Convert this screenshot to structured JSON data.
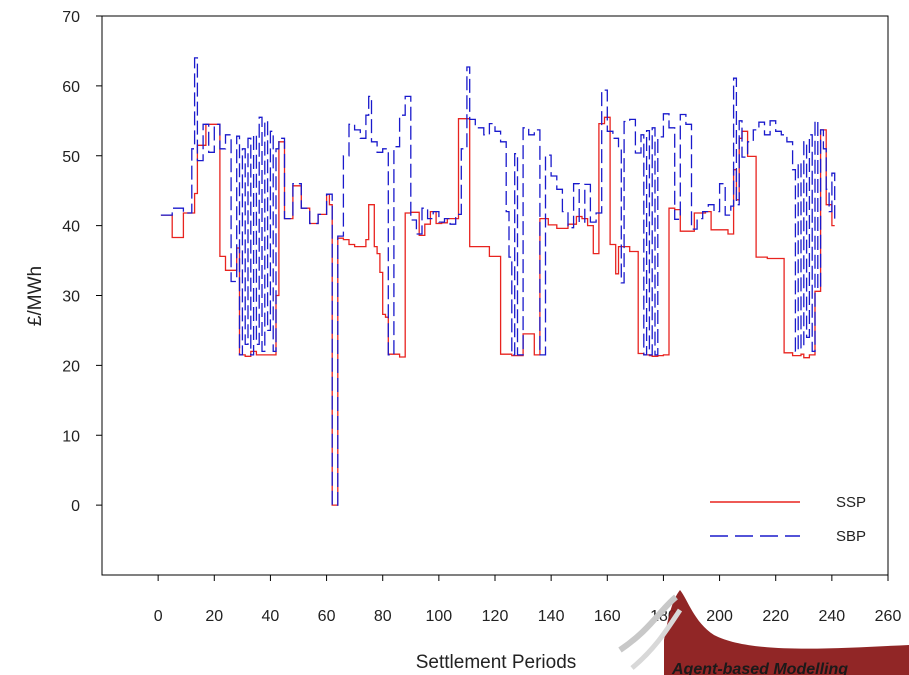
{
  "chart_data": {
    "type": "line",
    "xlabel": "Settlement Periods",
    "ylabel": "£/MWh",
    "xlim": [
      -20,
      260
    ],
    "ylim": [
      -10,
      70
    ],
    "xticks": [
      0,
      20,
      40,
      60,
      80,
      100,
      120,
      140,
      160,
      180,
      200,
      220,
      240,
      260
    ],
    "yticks": [
      0,
      10,
      20,
      30,
      40,
      50,
      60,
      70
    ],
    "grid": false,
    "legend_position": "bottom-right",
    "series": [
      {
        "name": "SSP",
        "color": "#e8231f",
        "style": "solid",
        "x": [
          1,
          5,
          9,
          13,
          14,
          17,
          22,
          24,
          28,
          29,
          31,
          33,
          35,
          38,
          42,
          43,
          45,
          48,
          51,
          54,
          57,
          60,
          61,
          62,
          63,
          64,
          66,
          68,
          70,
          72,
          74,
          75,
          77,
          78,
          79,
          80,
          81,
          82,
          86,
          88,
          90,
          93,
          95,
          97,
          99,
          101,
          103,
          107,
          111,
          113,
          118,
          122,
          126,
          127,
          130,
          134,
          136,
          139,
          142,
          146,
          149,
          151,
          153,
          155,
          157,
          159,
          160,
          161,
          163,
          164,
          168,
          171,
          173,
          175,
          176,
          178,
          180,
          182,
          184,
          186,
          191,
          195,
          197,
          203,
          205,
          206,
          207,
          208,
          210,
          213,
          217,
          223,
          226,
          229,
          230,
          232,
          234,
          236,
          238,
          240,
          241
        ],
        "y": [
          41.5,
          38.3,
          41.8,
          44.6,
          51.5,
          54.5,
          35.6,
          33.6,
          36.8,
          21.5,
          21.3,
          22.0,
          21.5,
          21.5,
          30.0,
          52.0,
          41.0,
          45.7,
          42.5,
          40.3,
          41.6,
          44.5,
          43.0,
          0,
          0,
          38.2,
          38.0,
          37.3,
          37.0,
          37.0,
          38.0,
          43.0,
          37.0,
          36.0,
          33.3,
          27.3,
          26.9,
          21.6,
          21.2,
          41.8,
          41.9,
          38.6,
          40.2,
          42.0,
          40.3,
          40.4,
          41.0,
          55.3,
          37.0,
          37.0,
          35.6,
          21.6,
          21.4,
          21.4,
          24.5,
          21.5,
          41.0,
          40.1,
          39.6,
          40.2,
          41.3,
          41.0,
          40.0,
          36.0,
          54.6,
          55.5,
          55.5,
          37.3,
          33.1,
          37.0,
          36.3,
          21.7,
          21.5,
          21.4,
          21.3,
          21.4,
          21.5,
          42.5,
          42.3,
          39.2,
          41.8,
          42.0,
          39.4,
          38.8,
          48.0,
          43.7,
          52.5,
          53.5,
          49.9,
          35.5,
          35.3,
          21.8,
          21.4,
          21.6,
          21.1,
          21.5,
          30.6,
          53.7,
          43.0,
          40.0,
          40.0
        ]
      },
      {
        "name": "SBP",
        "color": "#1a1acc",
        "style": "dashed",
        "x": [
          1,
          5,
          9,
          12,
          13,
          14,
          16,
          18,
          20,
          22,
          24,
          26,
          28,
          29,
          30,
          31,
          32,
          33,
          34,
          35,
          36,
          37,
          38,
          39,
          40,
          41,
          42,
          43,
          45,
          48,
          51,
          54,
          57,
          60,
          62,
          63,
          64,
          66,
          68,
          70,
          72,
          74,
          75,
          76,
          78,
          80,
          82,
          84,
          86,
          88,
          90,
          92,
          94,
          96,
          98,
          100,
          102,
          104,
          106,
          108,
          110,
          111,
          113,
          116,
          118,
          120,
          122,
          124,
          125,
          126,
          127,
          128,
          130,
          132,
          134,
          136,
          138,
          140,
          142,
          144,
          146,
          148,
          150,
          152,
          154,
          156,
          158,
          160,
          162,
          164,
          165,
          166,
          168,
          170,
          172,
          173,
          174,
          175,
          176,
          177,
          178,
          180,
          182,
          184,
          186,
          188,
          190,
          192,
          194,
          196,
          198,
          200,
          202,
          204,
          205,
          206,
          207,
          208,
          210,
          212,
          214,
          216,
          218,
          220,
          222,
          224,
          226,
          227,
          228,
          229,
          230,
          231,
          232,
          233,
          234,
          235,
          236,
          237,
          238,
          239,
          240,
          241
        ],
        "y": [
          41.5,
          42.5,
          41.8,
          51.0,
          64.0,
          49.3,
          54.5,
          50.5,
          54.5,
          51.0,
          53.0,
          32.0,
          52.8,
          21.5,
          51.0,
          23.0,
          52.5,
          21.5,
          53.0,
          23.0,
          55.5,
          22.0,
          55.0,
          25.0,
          53.5,
          22.0,
          51.0,
          52.5,
          41.0,
          46.0,
          42.5,
          40.3,
          41.6,
          44.5,
          0,
          0,
          38.5,
          50.0,
          54.5,
          53.7,
          52.5,
          55.8,
          58.5,
          52.0,
          50.5,
          51.0,
          21.5,
          51.3,
          55.8,
          58.5,
          40.8,
          38.8,
          42.5,
          41.0,
          42.0,
          40.5,
          41.0,
          40.2,
          41.6,
          51.0,
          62.7,
          55.2,
          54.0,
          53.0,
          54.6,
          53.5,
          52.0,
          42.0,
          35.5,
          21.5,
          50.3,
          21.5,
          54.0,
          53.0,
          53.7,
          21.5,
          50.1,
          47.1,
          45.2,
          42.0,
          39.7,
          46.0,
          40.5,
          45.9,
          40.5,
          41.8,
          59.4,
          53.5,
          52.5,
          51.2,
          31.8,
          54.9,
          55.2,
          50.4,
          53.0,
          21.5,
          53.6,
          21.5,
          54.0,
          21.5,
          52.7,
          56.0,
          54.0,
          40.9,
          55.9,
          54.5,
          39.5,
          41.0,
          42.0,
          43.0,
          42.0,
          46.0,
          41.5,
          42.8,
          61.1,
          43.0,
          55.0,
          49.8,
          52.0,
          53.7,
          54.8,
          53.0,
          55.0,
          53.5,
          53.0,
          52.0,
          48.0,
          22.0,
          49.0,
          22.5,
          52.0,
          24.0,
          53.0,
          22.0,
          55.0,
          31.0,
          53.7,
          51.0,
          45.2,
          42.0,
          47.5,
          41.0
        ]
      }
    ]
  },
  "logo": {
    "text": "Agent-based Modelling",
    "color": "#8b1a1a"
  }
}
